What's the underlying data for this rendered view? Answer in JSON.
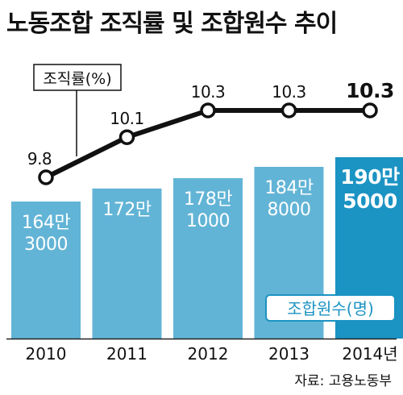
{
  "title": "노동조합 조직률 및 조합원수 추이",
  "source": "자료: 고용노동부",
  "chart_data": {
    "type": "bar",
    "categories": [
      "2010",
      "2011",
      "2012",
      "2013",
      "2014년"
    ],
    "series": [
      {
        "name": "조합원수(명)",
        "type": "bar",
        "values": [
          1643000,
          1720000,
          1781000,
          1848000,
          1905000
        ],
        "labels": [
          [
            "164만",
            "3000"
          ],
          [
            "172만"
          ],
          [
            "178만",
            "1000"
          ],
          [
            "184만",
            "8000"
          ],
          [
            "190만",
            "5000"
          ]
        ],
        "color": "#62b4d6",
        "highlight_color": "#1b93c3"
      },
      {
        "name": "조직률(%)",
        "type": "line",
        "values": [
          9.8,
          10.1,
          10.3,
          10.3,
          10.3
        ],
        "labels": [
          "9.8",
          "10.1",
          "10.3",
          "10.3",
          "10.3"
        ],
        "color": "#111111"
      }
    ],
    "xlabel": "",
    "ylabel": "",
    "grid": false,
    "legend": [
      "조직률(%)",
      "조합원수(명)"
    ]
  }
}
